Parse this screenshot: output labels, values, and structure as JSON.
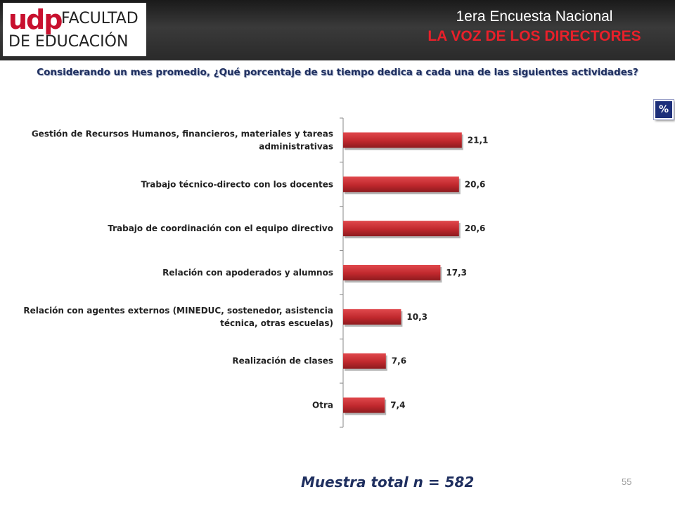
{
  "header": {
    "logo_udp": "udp",
    "logo_line1": "FACULTAD",
    "logo_line2": "DE EDUCACIÓN",
    "title": "1era Encuesta Nacional",
    "subtitle": "LA VOZ DE LOS DIRECTORES"
  },
  "question": "Considerando un mes promedio, ¿Qué porcentaje de su tiempo dedica a cada una de las siguientes actividades?",
  "badge": "%",
  "footer": {
    "sample": "Muestra total n = 582",
    "page_number": "55"
  },
  "chart_data": {
    "type": "bar",
    "orientation": "horizontal",
    "title": "Considerando un mes promedio, ¿Qué porcentaje de su tiempo dedica a cada una de las siguientes actividades?",
    "xlabel": "",
    "ylabel": "",
    "categories": [
      [
        "Gestión de Recursos Humanos, financieros, materiales y tareas",
        "administrativas"
      ],
      [
        "Trabajo técnico-directo con los docentes"
      ],
      [
        "Trabajo de coordinación con el equipo directivo"
      ],
      [
        "Relación con apoderados y alumnos"
      ],
      [
        "Relación con agentes externos (MINEDUC, sostenedor, asistencia",
        "técnica, otras escuelas)"
      ],
      [
        "Realización de clases"
      ],
      [
        "Otra"
      ]
    ],
    "values": [
      21.1,
      20.6,
      20.6,
      17.3,
      10.3,
      7.6,
      7.4
    ],
    "value_labels": [
      "21,1",
      "20,6",
      "20,6",
      "17,3",
      "10,3",
      "7,6",
      "7,4"
    ],
    "xlim": [
      0,
      50
    ],
    "bar_color": "#c0282d"
  }
}
